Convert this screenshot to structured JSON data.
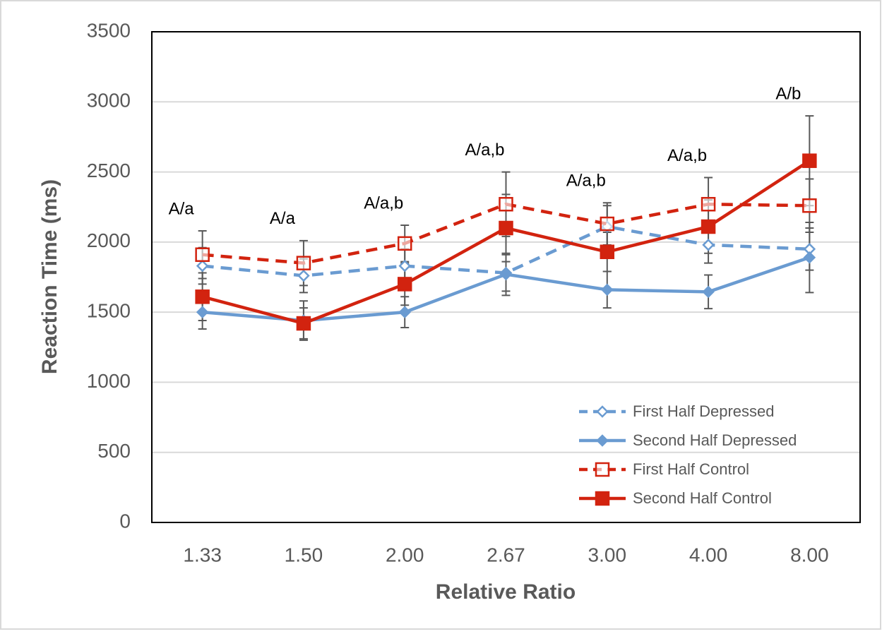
{
  "chart_data": {
    "type": "line",
    "xlabel": "Relative Ratio",
    "ylabel": "Reaction Time (ms)",
    "categories": [
      "1.33",
      "1.50",
      "2.00",
      "2.67",
      "3.00",
      "4.00",
      "8.00"
    ],
    "ylim": [
      0,
      3500
    ],
    "yticks": [
      0,
      500,
      1000,
      1500,
      2000,
      2500,
      3000,
      3500
    ],
    "grid": true,
    "legend": "lower right",
    "annotations": [
      "A/a",
      "A/a",
      "A/a,b",
      "A/a,b",
      "A/a,b",
      "A/a,b",
      "A/b"
    ],
    "series": [
      {
        "name": "First Half Depressed",
        "color": "#6a9bd1",
        "dashed": true,
        "marker": "diamond",
        "filled": false,
        "values": [
          1830,
          1760,
          1830,
          1780,
          2110,
          1980,
          1950
        ],
        "errors": [
          130,
          120,
          120,
          130,
          150,
          130,
          150
        ]
      },
      {
        "name": "Second Half Depressed",
        "color": "#6a9bd1",
        "dashed": false,
        "marker": "diamond",
        "filled": true,
        "values": [
          1500,
          1440,
          1500,
          1770,
          1660,
          1645,
          1890
        ],
        "errors": [
          120,
          140,
          110,
          150,
          130,
          120,
          250
        ]
      },
      {
        "name": "First Half Control",
        "color": "#d2230f",
        "dashed": true,
        "marker": "square",
        "filled": false,
        "values": [
          1910,
          1850,
          1990,
          2270,
          2130,
          2270,
          2260
        ],
        "errors": [
          170,
          160,
          130,
          230,
          150,
          190,
          190
        ]
      },
      {
        "name": "Second Half Control",
        "color": "#d2230f",
        "dashed": false,
        "marker": "square",
        "filled": true,
        "values": [
          1610,
          1420,
          1700,
          2100,
          1930,
          2110,
          2580
        ],
        "errors": [
          170,
          110,
          150,
          240,
          140,
          190,
          320
        ]
      }
    ]
  }
}
